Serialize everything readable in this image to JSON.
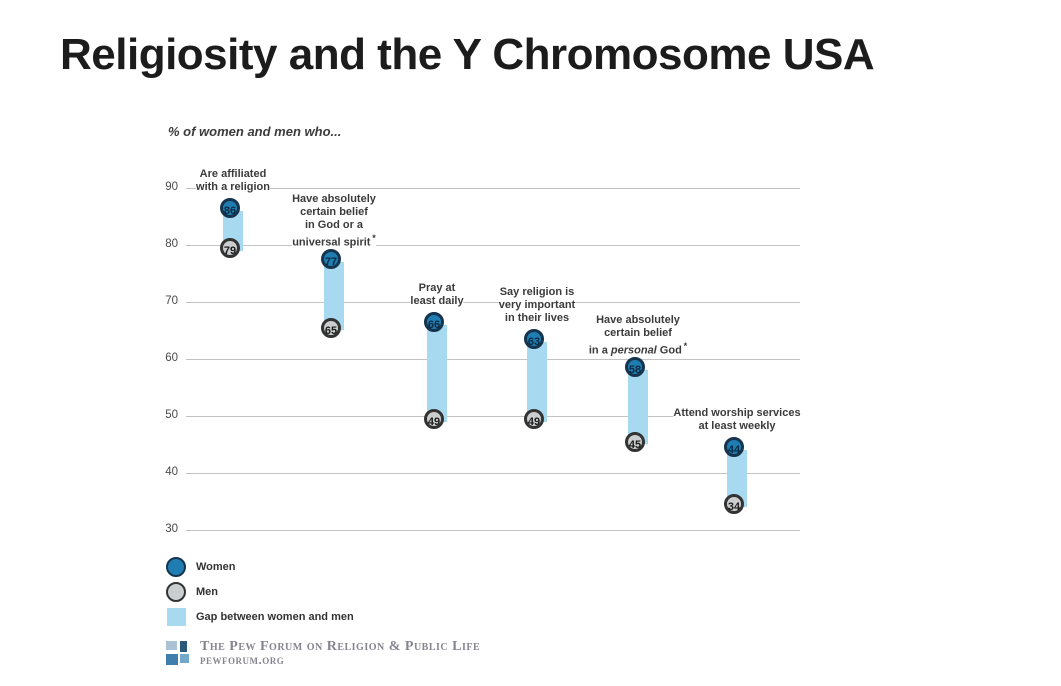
{
  "slide": {
    "title": "Religiosity and the Y Chromosome USA"
  },
  "chart_data": {
    "type": "scatter",
    "variant": "dumbbell-gap",
    "title": "Religiosity and the Y Chromosome USA",
    "subtitle": "% of women and men who...",
    "categories": [
      {
        "lines": [
          "Are affiliated",
          "with a religion"
        ],
        "asterisk": false
      },
      {
        "lines": [
          "Have absolutely",
          "certain belief",
          "in God or a",
          "universal spirit"
        ],
        "asterisk": true
      },
      {
        "lines": [
          "Pray at",
          "least daily"
        ],
        "asterisk": false
      },
      {
        "lines": [
          "Say religion is",
          "very important",
          "in their lives"
        ],
        "asterisk": false
      },
      {
        "lines": [
          "Have absolutely",
          "certain belief",
          "in a _personal_ God"
        ],
        "asterisk": true
      },
      {
        "lines": [
          "Attend worship services",
          "at least weekly"
        ],
        "asterisk": false
      }
    ],
    "series": [
      {
        "name": "Women",
        "values": [
          86,
          77,
          66,
          63,
          58,
          44
        ]
      },
      {
        "name": "Men",
        "values": [
          79,
          65,
          49,
          49,
          45,
          34
        ]
      }
    ],
    "ylim": [
      30,
      90
    ],
    "yticks": [
      90,
      80,
      70,
      60,
      50,
      40,
      30
    ],
    "grid": true,
    "legend_position": "bottom-left",
    "legend": [
      {
        "swatch": "circle-women",
        "label": "Women"
      },
      {
        "swatch": "circle-men",
        "label": "Men"
      },
      {
        "swatch": "square-gap",
        "label": "Gap between women and men"
      }
    ],
    "colors": {
      "women_fill": "#1f7db2",
      "women_border": "#16344e",
      "women_text": "#0b2a40",
      "men_fill": "#cbcdce",
      "men_border": "#333333",
      "men_text": "#1a1a1a",
      "gap_fill": "#a7d9f1",
      "gridline": "#c3c3c3"
    }
  },
  "footer": {
    "org": "The Pew Forum on Religion & Public Life",
    "url": "pewforum.org"
  }
}
